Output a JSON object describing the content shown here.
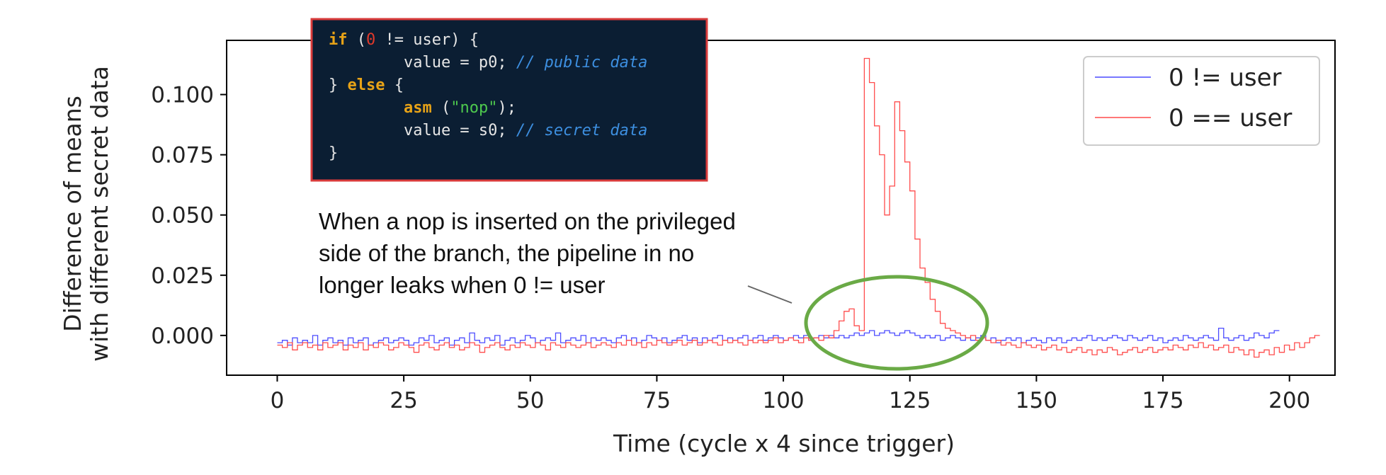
{
  "chart_data": {
    "type": "line",
    "xlabel": "Time (cycle x 4 since trigger)",
    "ylabel": [
      "Difference of means",
      "with different secret data"
    ],
    "xlim": [
      -10,
      209
    ],
    "ylim": [
      -0.0165,
      0.1225
    ],
    "xticks": [
      0,
      25,
      50,
      75,
      100,
      125,
      150,
      175,
      200
    ],
    "xtick_labels": [
      "0",
      "25",
      "50",
      "75",
      "100",
      "125",
      "150",
      "175",
      "200"
    ],
    "yticks": [
      0.0,
      0.025,
      0.05,
      0.075,
      0.1
    ],
    "ytick_labels": [
      "0.000",
      "0.025",
      "0.050",
      "0.075",
      "0.100"
    ],
    "legend_position": "top-right",
    "series": [
      {
        "name": "0 != user",
        "color": "#4c4cff",
        "style": "step",
        "x_start": 0,
        "x_step": 1,
        "values": [
          -0.003,
          -0.002,
          -0.004,
          -0.001,
          -0.003,
          -0.002,
          -0.003,
          0.0,
          -0.004,
          -0.002,
          -0.001,
          -0.003,
          -0.002,
          -0.004,
          -0.001,
          -0.003,
          -0.002,
          -0.001,
          -0.004,
          -0.003,
          -0.002,
          -0.001,
          -0.003,
          -0.002,
          -0.001,
          -0.002,
          -0.004,
          -0.003,
          -0.001,
          -0.002,
          0.0,
          -0.003,
          -0.002,
          -0.001,
          -0.004,
          -0.002,
          -0.001,
          -0.003,
          0.001,
          -0.002,
          -0.003,
          -0.001,
          -0.002,
          0.0,
          -0.004,
          -0.002,
          -0.001,
          -0.003,
          -0.002,
          0.0,
          -0.001,
          -0.003,
          -0.002,
          -0.001,
          -0.002,
          0.001,
          -0.003,
          -0.002,
          -0.001,
          -0.002,
          0.0,
          -0.003,
          -0.001,
          -0.002,
          -0.001,
          -0.002,
          -0.003,
          -0.001,
          0.0,
          -0.002,
          -0.001,
          -0.003,
          -0.002,
          0.0,
          -0.001,
          -0.002,
          -0.001,
          -0.003,
          -0.002,
          -0.001,
          0.0,
          -0.002,
          -0.001,
          -0.003,
          -0.001,
          -0.002,
          -0.001,
          0.0,
          -0.002,
          -0.001,
          -0.002,
          -0.001,
          0.0,
          -0.002,
          -0.001,
          0.0,
          -0.002,
          -0.001,
          0.0,
          -0.001,
          -0.002,
          -0.001,
          0.0,
          -0.001,
          0.0,
          -0.002,
          -0.001,
          0.0,
          -0.001,
          0.0,
          -0.001,
          0.0,
          -0.001,
          0.0,
          0.001,
          0.0,
          0.001,
          0.002,
          0.0,
          0.001,
          0.002,
          0.001,
          0.0,
          0.001,
          0.002,
          0.001,
          0.0,
          -0.001,
          0.0,
          -0.001,
          0.0,
          -0.002,
          -0.001,
          0.0,
          -0.001,
          -0.002,
          -0.001,
          -0.002,
          -0.001,
          0.0,
          -0.002,
          -0.001,
          -0.003,
          -0.002,
          -0.001,
          -0.002,
          -0.001,
          -0.003,
          -0.002,
          -0.001,
          -0.002,
          -0.003,
          -0.001,
          -0.002,
          -0.001,
          -0.003,
          -0.002,
          -0.001,
          -0.002,
          -0.001,
          0.0,
          -0.002,
          -0.001,
          -0.002,
          -0.001,
          0.0,
          -0.001,
          -0.002,
          0.0,
          -0.001,
          -0.002,
          -0.001,
          0.0,
          -0.002,
          -0.001,
          -0.003,
          -0.002,
          -0.001,
          -0.002,
          0.0,
          -0.001,
          -0.002,
          -0.001,
          0.0,
          -0.001,
          -0.002,
          0.003,
          -0.001,
          -0.002,
          -0.001,
          0.0,
          -0.002,
          -0.001,
          0.001,
          0.0,
          -0.001,
          0.001,
          0.002
        ]
      },
      {
        "name": "0 == user",
        "color": "#ff4c4c",
        "style": "step",
        "x_start": 0,
        "x_step": 1,
        "values": [
          -0.004,
          -0.005,
          -0.003,
          -0.006,
          -0.004,
          -0.003,
          -0.005,
          -0.004,
          -0.006,
          -0.003,
          -0.005,
          -0.004,
          -0.003,
          -0.006,
          -0.004,
          -0.005,
          -0.003,
          -0.006,
          -0.004,
          -0.005,
          -0.003,
          -0.004,
          -0.006,
          -0.005,
          -0.003,
          -0.004,
          -0.005,
          -0.007,
          -0.004,
          -0.003,
          -0.005,
          -0.006,
          -0.004,
          -0.003,
          -0.005,
          -0.004,
          -0.006,
          -0.005,
          -0.003,
          -0.004,
          -0.007,
          -0.005,
          -0.004,
          -0.003,
          -0.005,
          -0.006,
          -0.004,
          -0.005,
          -0.003,
          -0.004,
          -0.005,
          -0.003,
          -0.004,
          -0.006,
          -0.003,
          -0.004,
          -0.005,
          -0.003,
          -0.004,
          -0.005,
          -0.004,
          -0.003,
          -0.005,
          -0.004,
          -0.003,
          -0.004,
          -0.005,
          -0.003,
          -0.004,
          -0.002,
          -0.004,
          -0.003,
          -0.005,
          -0.003,
          -0.004,
          -0.002,
          -0.003,
          -0.004,
          -0.003,
          -0.002,
          -0.004,
          -0.003,
          -0.002,
          -0.004,
          -0.003,
          -0.002,
          -0.003,
          -0.004,
          -0.002,
          -0.003,
          -0.002,
          -0.003,
          -0.004,
          -0.002,
          -0.003,
          -0.002,
          -0.003,
          -0.002,
          -0.001,
          -0.003,
          -0.002,
          -0.001,
          -0.002,
          -0.003,
          -0.001,
          -0.002,
          -0.001,
          -0.002,
          0.0,
          -0.001,
          0.002,
          0.006,
          0.01,
          0.011,
          0.004,
          0.002,
          0.115,
          0.105,
          0.087,
          0.075,
          0.05,
          0.062,
          0.097,
          0.085,
          0.072,
          0.06,
          0.04,
          0.028,
          0.022,
          0.015,
          0.01,
          0.005,
          0.003,
          0.002,
          0.001,
          0.0,
          -0.001,
          0.0,
          -0.002,
          -0.001,
          -0.002,
          -0.003,
          -0.002,
          -0.004,
          -0.003,
          -0.004,
          -0.005,
          -0.003,
          -0.004,
          -0.005,
          -0.004,
          -0.006,
          -0.005,
          -0.004,
          -0.006,
          -0.005,
          -0.007,
          -0.006,
          -0.005,
          -0.007,
          -0.006,
          -0.008,
          -0.006,
          -0.007,
          -0.005,
          -0.006,
          -0.008,
          -0.007,
          -0.006,
          -0.005,
          -0.007,
          -0.006,
          -0.005,
          -0.007,
          -0.006,
          -0.005,
          -0.006,
          -0.004,
          -0.005,
          -0.006,
          -0.004,
          -0.005,
          -0.003,
          -0.005,
          -0.004,
          -0.006,
          -0.005,
          -0.004,
          -0.007,
          -0.005,
          -0.006,
          -0.008,
          -0.006,
          -0.009,
          -0.007,
          -0.006,
          -0.008,
          -0.005,
          -0.007,
          -0.004,
          -0.006,
          -0.003,
          -0.005,
          -0.003,
          -0.001,
          0.0
        ]
      }
    ],
    "annotation": {
      "lines": [
        "When a nop is inserted on the privileged",
        "side of the branch, the pipeline in no",
        "longer leaks when 0 != user"
      ]
    },
    "code_box": {
      "lines": [
        [
          {
            "t": "if",
            "c": "kw"
          },
          {
            "t": " (",
            "c": "plain"
          },
          {
            "t": "0",
            "c": "num"
          },
          {
            "t": " != user) {",
            "c": "plain"
          }
        ],
        [
          {
            "t": "        value = p0; ",
            "c": "plain"
          },
          {
            "t": "// public data",
            "c": "comment"
          }
        ],
        [
          {
            "t": "} ",
            "c": "plain"
          },
          {
            "t": "else",
            "c": "kw"
          },
          {
            "t": " {",
            "c": "plain"
          }
        ],
        [
          {
            "t": "        ",
            "c": "plain"
          },
          {
            "t": "asm",
            "c": "kw"
          },
          {
            "t": " (",
            "c": "plain"
          },
          {
            "t": "\"nop\"",
            "c": "str"
          },
          {
            "t": ");",
            "c": "plain"
          }
        ],
        [
          {
            "t": "        value = s0; ",
            "c": "plain"
          },
          {
            "t": "// secret data",
            "c": "comment"
          }
        ],
        [
          {
            "t": "}",
            "c": "plain"
          }
        ]
      ],
      "colors": {
        "background": "#0b1e33",
        "border": "#d93b3b",
        "kw": "#e8a317",
        "num": "#e0392b",
        "plain": "#e6e6e6",
        "comment": "#3d8fe0",
        "str": "#4ec94e"
      }
    },
    "highlight_ellipse_color": "#6aaa46"
  }
}
